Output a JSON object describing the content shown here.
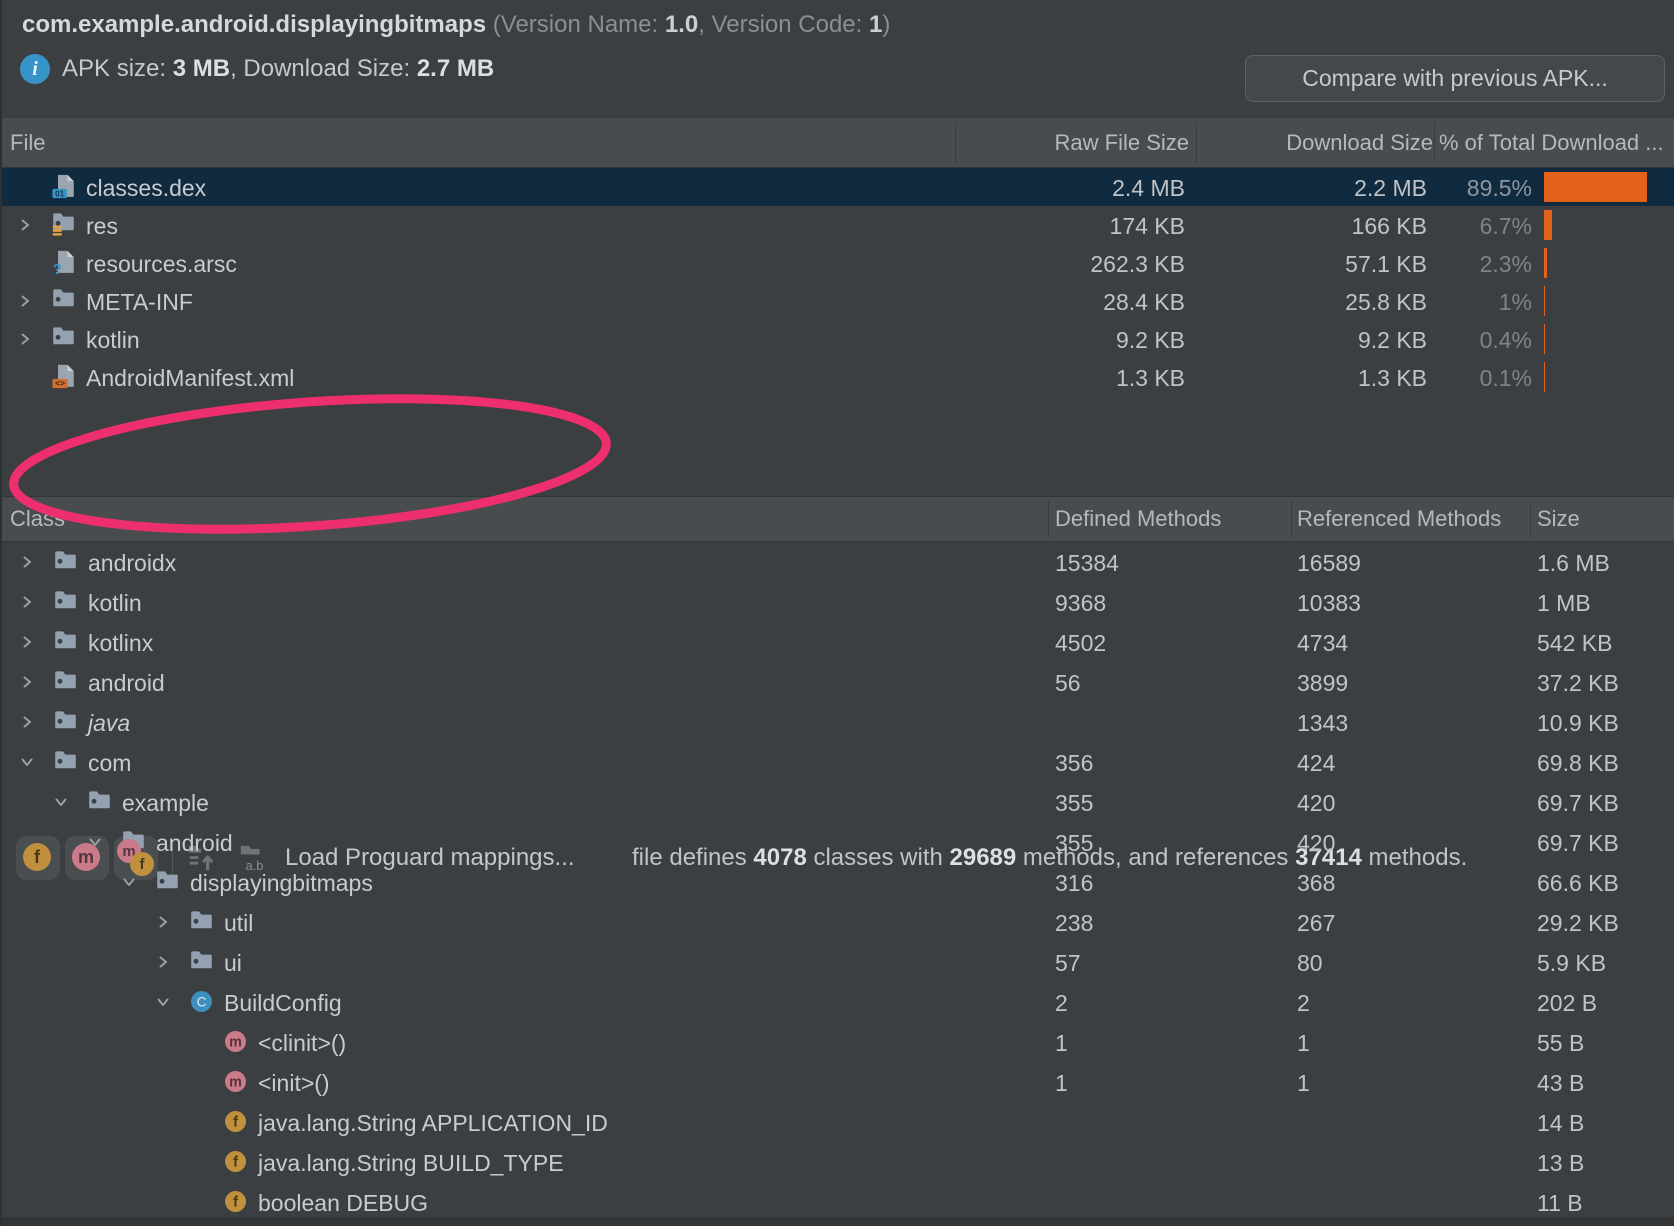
{
  "colors": {
    "background": "#3c3f41",
    "selection_blue": "#102a40",
    "bar_orange": "#e2621c",
    "annotation_pink": "#ee2f6d",
    "folder_blue_gray": "#93a1b0",
    "field_gold": "#c0903e",
    "method_pink": "#c97b8a",
    "class_blue": "#3e8fbf",
    "info_blue": "#3794c8"
  },
  "header": {
    "title": "com.example.android.displayingbitmaps",
    "version_label_open": " (Version Name: ",
    "version_name": "1.0",
    "version_label_mid": ", Version Code: ",
    "version_code": "1",
    "version_label_close": ")",
    "apk_size_label": "APK size: ",
    "apk_size_value": "3 MB",
    "download_size_label": ", Download Size: ",
    "download_size_value": "2.7 MB",
    "compare_button": "Compare with previous APK..."
  },
  "file_table": {
    "columns": {
      "file": "File",
      "raw": "Raw File Size",
      "download": "Download Size",
      "pct": "% of Total Download ..."
    },
    "rows": [
      {
        "name": "classes.dex",
        "icon": "dex-file",
        "chevron": "",
        "raw": "2.4 MB",
        "download": "2.2 MB",
        "pct": "89.5%",
        "pct_value": 89.5,
        "selected": true
      },
      {
        "name": "res",
        "icon": "res-folder",
        "chevron": "right",
        "raw": "174 KB",
        "download": "166 KB",
        "pct": "6.7%",
        "pct_value": 6.7,
        "selected": false
      },
      {
        "name": "resources.arsc",
        "icon": "arsc-file",
        "chevron": "",
        "raw": "262.3 KB",
        "download": "57.1 KB",
        "pct": "2.3%",
        "pct_value": 2.3,
        "selected": false
      },
      {
        "name": "META-INF",
        "icon": "folder",
        "chevron": "right",
        "raw": "28.4 KB",
        "download": "25.8 KB",
        "pct": "1%",
        "pct_value": 1,
        "selected": false
      },
      {
        "name": "kotlin",
        "icon": "folder",
        "chevron": "right",
        "raw": "9.2 KB",
        "download": "9.2 KB",
        "pct": "0.4%",
        "pct_value": 0.4,
        "selected": false
      },
      {
        "name": "AndroidManifest.xml",
        "icon": "manifest-file",
        "chevron": "",
        "raw": "1.3 KB",
        "download": "1.3 KB",
        "pct": "0.1%",
        "pct_value": 0.1,
        "selected": false
      }
    ]
  },
  "toolbar": {
    "buttons": [
      {
        "name": "show-fields",
        "letters": [
          "f"
        ]
      },
      {
        "name": "show-methods",
        "letters": [
          "m"
        ]
      },
      {
        "name": "show-fields-and-methods",
        "letters": [
          "m",
          "f"
        ]
      }
    ],
    "load_mappings_label": "Load Proguard mappings...",
    "summary_parts": [
      {
        "text": "file defines ",
        "bold": false
      },
      {
        "text": "4078",
        "bold": true
      },
      {
        "text": " classes with ",
        "bold": false
      },
      {
        "text": "29689",
        "bold": true
      },
      {
        "text": " methods, and references ",
        "bold": false
      },
      {
        "text": "37414",
        "bold": true
      },
      {
        "text": " methods.",
        "bold": false
      }
    ]
  },
  "class_table": {
    "columns": {
      "class": "Class",
      "defined": "Defined Methods",
      "referenced": "Referenced Methods",
      "size": "Size"
    },
    "rows": [
      {
        "level": 0,
        "chevron": "right",
        "icon": "folder",
        "name": "androidx",
        "italic": false,
        "defined": "15384",
        "referenced": "16589",
        "size": "1.6 MB"
      },
      {
        "level": 0,
        "chevron": "right",
        "icon": "folder",
        "name": "kotlin",
        "italic": false,
        "defined": "9368",
        "referenced": "10383",
        "size": "1 MB"
      },
      {
        "level": 0,
        "chevron": "right",
        "icon": "folder",
        "name": "kotlinx",
        "italic": false,
        "defined": "4502",
        "referenced": "4734",
        "size": "542 KB"
      },
      {
        "level": 0,
        "chevron": "right",
        "icon": "folder",
        "name": "android",
        "italic": false,
        "defined": "56",
        "referenced": "3899",
        "size": "37.2 KB"
      },
      {
        "level": 0,
        "chevron": "right",
        "icon": "folder",
        "name": "java",
        "italic": true,
        "defined": "",
        "referenced": "1343",
        "size": "10.9 KB"
      },
      {
        "level": 0,
        "chevron": "down",
        "icon": "folder",
        "name": "com",
        "italic": false,
        "defined": "356",
        "referenced": "424",
        "size": "69.8 KB"
      },
      {
        "level": 1,
        "chevron": "down",
        "icon": "folder",
        "name": "example",
        "italic": false,
        "defined": "355",
        "referenced": "420",
        "size": "69.7 KB"
      },
      {
        "level": 2,
        "chevron": "down",
        "icon": "folder",
        "name": "android",
        "italic": false,
        "defined": "355",
        "referenced": "420",
        "size": "69.7 KB"
      },
      {
        "level": 3,
        "chevron": "down",
        "icon": "folder",
        "name": "displayingbitmaps",
        "italic": false,
        "defined": "316",
        "referenced": "368",
        "size": "66.6 KB"
      },
      {
        "level": 4,
        "chevron": "right",
        "icon": "folder",
        "name": "util",
        "italic": false,
        "defined": "238",
        "referenced": "267",
        "size": "29.2 KB"
      },
      {
        "level": 4,
        "chevron": "right",
        "icon": "folder",
        "name": "ui",
        "italic": false,
        "defined": "57",
        "referenced": "80",
        "size": "5.9 KB"
      },
      {
        "level": 4,
        "chevron": "down",
        "icon": "class",
        "name": "BuildConfig",
        "italic": false,
        "defined": "2",
        "referenced": "2",
        "size": "202 B"
      },
      {
        "level": 5,
        "chevron": "",
        "icon": "method",
        "name": "<clinit>()",
        "italic": false,
        "defined": "1",
        "referenced": "1",
        "size": "55 B"
      },
      {
        "level": 5,
        "chevron": "",
        "icon": "method",
        "name": "<init>()",
        "italic": false,
        "defined": "1",
        "referenced": "1",
        "size": "43 B"
      },
      {
        "level": 5,
        "chevron": "",
        "icon": "field",
        "name": "java.lang.String APPLICATION_ID",
        "italic": false,
        "defined": "",
        "referenced": "",
        "size": "14 B"
      },
      {
        "level": 5,
        "chevron": "",
        "icon": "field",
        "name": "java.lang.String BUILD_TYPE",
        "italic": false,
        "defined": "",
        "referenced": "",
        "size": "13 B"
      },
      {
        "level": 5,
        "chevron": "",
        "icon": "field",
        "name": "boolean DEBUG",
        "italic": false,
        "defined": "",
        "referenced": "",
        "size": "11 B"
      }
    ]
  }
}
